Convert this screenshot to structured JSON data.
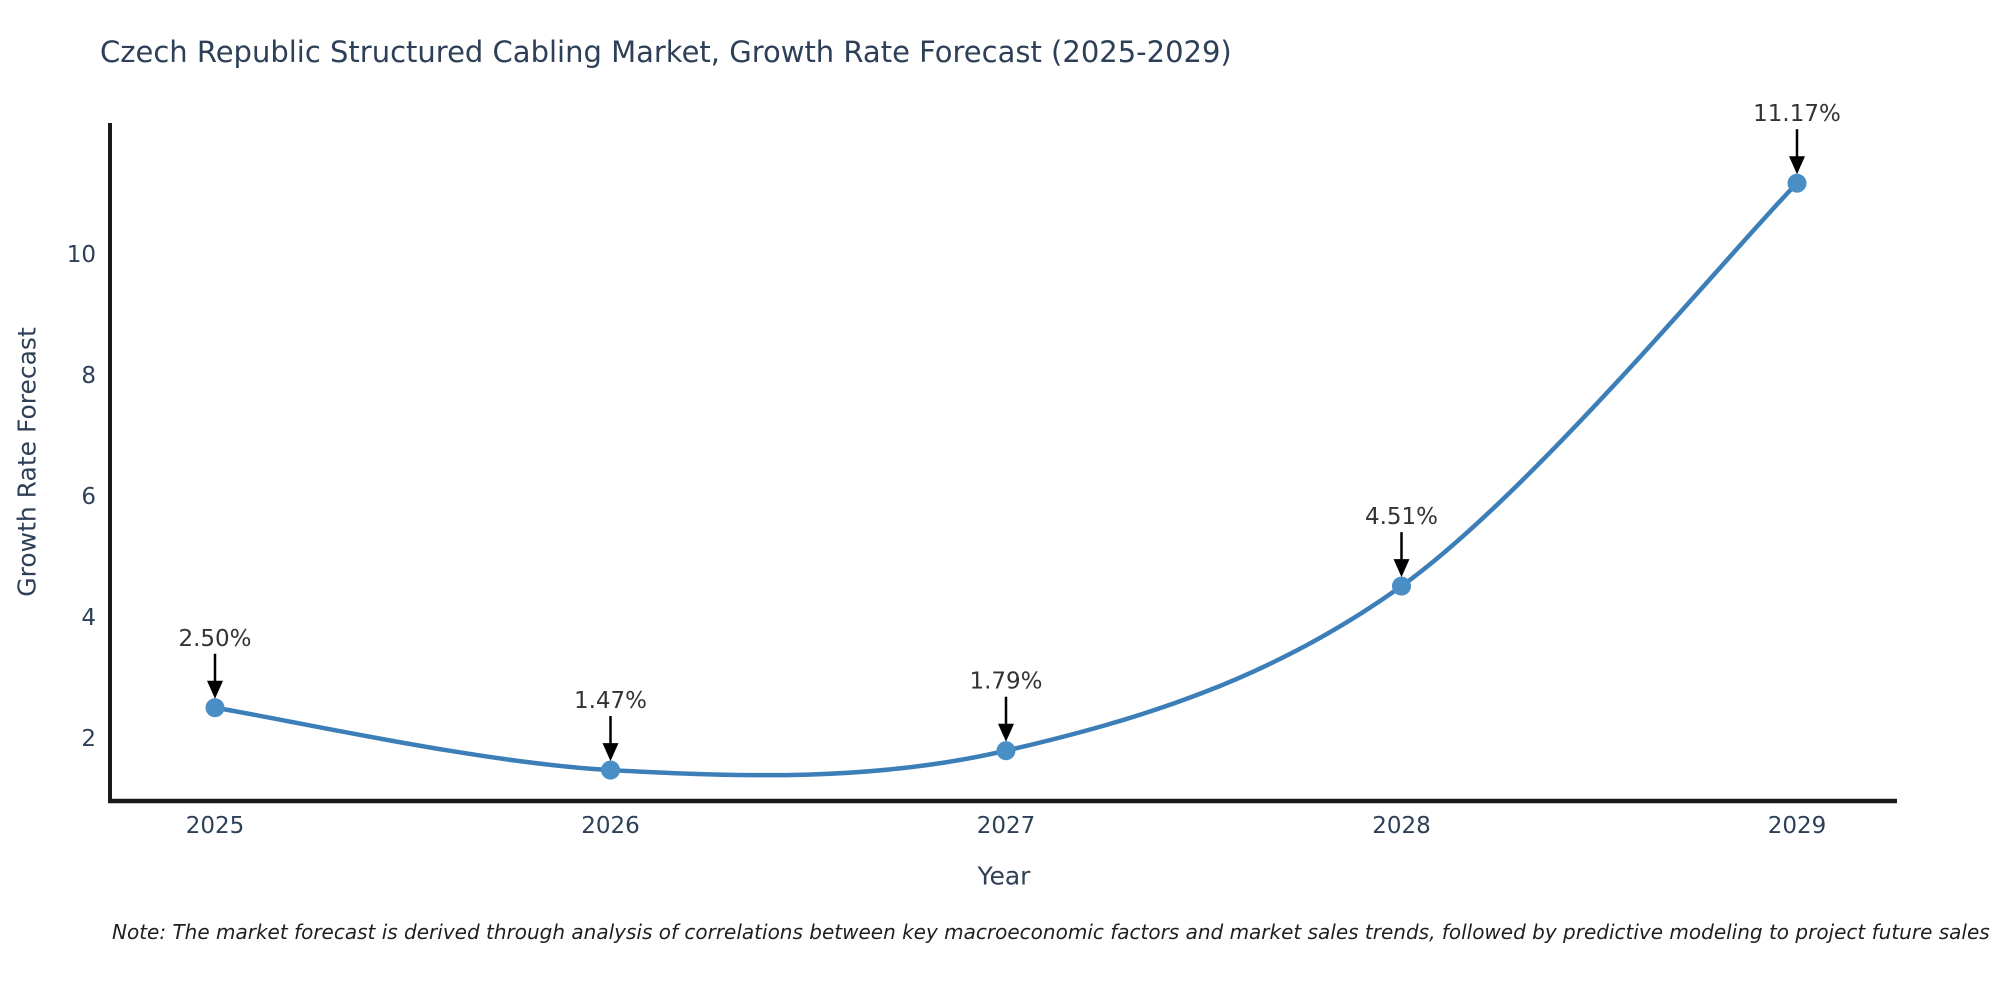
{
  "title": "Czech Republic Structured Cabling Market, Growth Rate Forecast (2025-2029)",
  "note": "Note: The market forecast is derived through analysis of correlations between key macroeconomic factors and market sales trends, followed by predictive modeling to project future sales",
  "chart_data": {
    "type": "line",
    "title": "Czech Republic Structured Cabling Market, Growth Rate Forecast (2025-2029)",
    "xlabel": "Year",
    "ylabel": "Growth Rate Forecast",
    "x": [
      2025,
      2026,
      2027,
      2028,
      2029
    ],
    "values": [
      2.5,
      1.47,
      1.79,
      4.51,
      11.17
    ],
    "point_labels": [
      "2.50%",
      "1.47%",
      "1.79%",
      "4.51%",
      "11.17%"
    ],
    "y_ticks": [
      2,
      4,
      6,
      8,
      10
    ],
    "x_tick_labels": [
      "2025",
      "2026",
      "2027",
      "2028",
      "2029"
    ],
    "ylim": [
      0.93,
      12.15
    ],
    "xlim": [
      2024.73,
      2029.26
    ],
    "grid": false,
    "legend_position": "none",
    "line_shape": "spline",
    "colors": {
      "line": "#3c7eb8",
      "marker": "#4a8ec6",
      "axis": "#1a1a1a",
      "tick_text": "#2e4057",
      "annotation_text": "#333333",
      "arrow": "#000000"
    }
  }
}
